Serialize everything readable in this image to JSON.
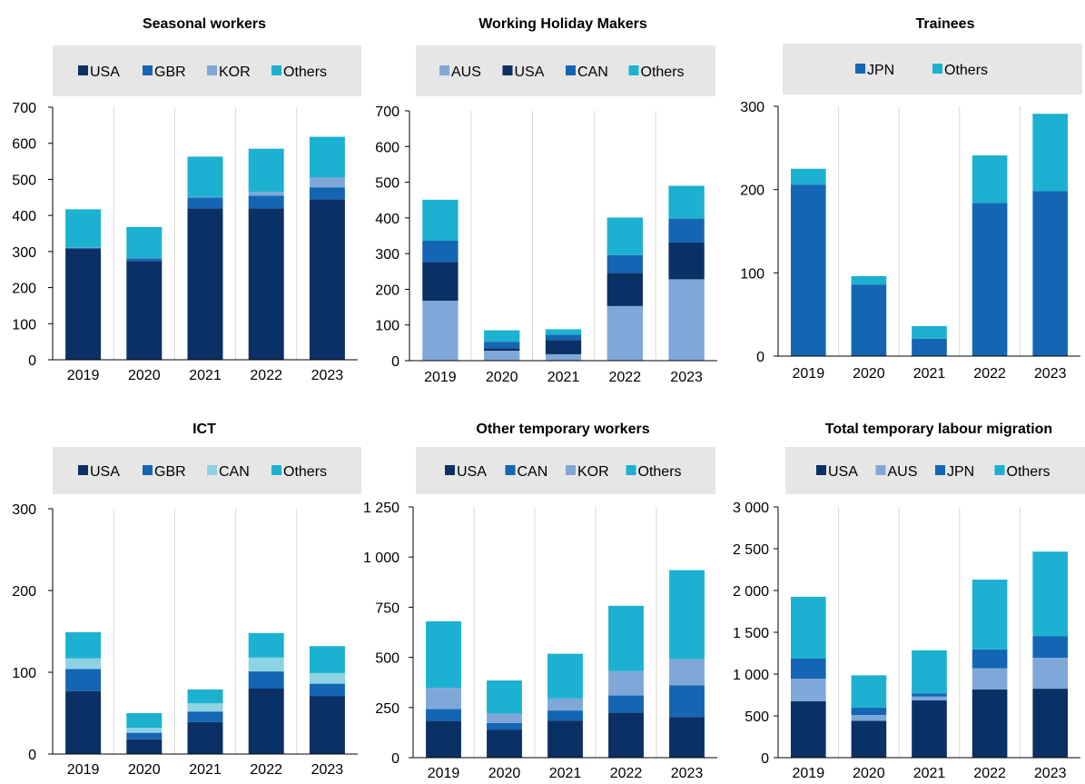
{
  "chart_data": [
    {
      "type": "bar",
      "stacked": true,
      "title": "Seasonal workers",
      "categories": [
        "2019",
        "2020",
        "2021",
        "2022",
        "2023"
      ],
      "series": [
        {
          "name": "USA",
          "color": "#0B3066",
          "values": [
            308,
            273,
            420,
            420,
            445
          ]
        },
        {
          "name": "GBR",
          "color": "#1466B4",
          "values": [
            2,
            8,
            30,
            35,
            33
          ]
        },
        {
          "name": "KOR",
          "color": "#7FA8D8",
          "values": [
            1,
            1,
            1,
            10,
            27
          ]
        },
        {
          "name": "Others",
          "color": "#1CB1D0",
          "values": [
            106,
            86,
            112,
            120,
            113
          ]
        }
      ],
      "yticks": [
        0,
        100,
        200,
        300,
        400,
        500,
        600,
        700
      ],
      "ytick_labels": [
        "0",
        "100",
        "200",
        "300",
        "400",
        "500",
        "600",
        "700"
      ],
      "ylim": [
        0,
        700
      ],
      "grid": "vertical",
      "legend": "top"
    },
    {
      "type": "bar",
      "stacked": true,
      "title": "Working Holiday Makers",
      "categories": [
        "2019",
        "2020",
        "2021",
        "2022",
        "2023"
      ],
      "series": [
        {
          "name": "AUS",
          "color": "#7FA8D8",
          "values": [
            168,
            28,
            18,
            153,
            228
          ]
        },
        {
          "name": "USA",
          "color": "#0B3066",
          "values": [
            108,
            7,
            40,
            93,
            103
          ]
        },
        {
          "name": "CAN",
          "color": "#1466B4",
          "values": [
            60,
            18,
            15,
            50,
            67
          ]
        },
        {
          "name": "Others",
          "color": "#1CB1D0",
          "values": [
            115,
            32,
            15,
            105,
            92
          ]
        }
      ],
      "yticks": [
        0,
        100,
        200,
        300,
        400,
        500,
        600,
        700
      ],
      "ytick_labels": [
        "0",
        "100",
        "200",
        "300",
        "400",
        "500",
        "600",
        "700"
      ],
      "ylim": [
        0,
        700
      ],
      "grid": "vertical",
      "legend": "top"
    },
    {
      "type": "bar",
      "stacked": true,
      "title": "Trainees",
      "categories": [
        "2019",
        "2020",
        "2021",
        "2022",
        "2023"
      ],
      "series": [
        {
          "name": "JPN",
          "color": "#1466B4",
          "values": [
            206,
            86,
            21,
            184,
            198
          ]
        },
        {
          "name": "Others",
          "color": "#1CB1D0",
          "values": [
            19,
            10,
            15,
            57,
            93
          ]
        }
      ],
      "yticks": [
        0,
        100,
        200,
        300
      ],
      "ytick_labels": [
        "0",
        "100",
        "200",
        "300"
      ],
      "ylim": [
        0,
        300
      ],
      "grid": "vertical",
      "legend": "top"
    },
    {
      "type": "bar",
      "stacked": true,
      "title": "ICT",
      "categories": [
        "2019",
        "2020",
        "2021",
        "2022",
        "2023"
      ],
      "series": [
        {
          "name": "USA",
          "color": "#0B3066",
          "values": [
            77,
            18,
            39,
            80,
            71
          ]
        },
        {
          "name": "GBR",
          "color": "#1466B4",
          "values": [
            27,
            8,
            13,
            21,
            15
          ]
        },
        {
          "name": "CAN",
          "color": "#8DD3E4",
          "values": [
            13,
            6,
            10,
            17,
            13
          ]
        },
        {
          "name": "Others",
          "color": "#1CB1D0",
          "values": [
            32,
            18,
            17,
            30,
            33
          ]
        }
      ],
      "yticks": [
        0,
        100,
        200,
        300
      ],
      "ytick_labels": [
        "0",
        "100",
        "200",
        "300"
      ],
      "ylim": [
        0,
        300
      ],
      "grid": "vertical",
      "legend": "top"
    },
    {
      "type": "bar",
      "stacked": true,
      "title": "Other temporary workers",
      "categories": [
        "2019",
        "2020",
        "2021",
        "2022",
        "2023"
      ],
      "series": [
        {
          "name": "USA",
          "color": "#0B3066",
          "values": [
            183,
            140,
            185,
            225,
            203
          ]
        },
        {
          "name": "CAN",
          "color": "#1466B4",
          "values": [
            60,
            33,
            50,
            85,
            157
          ]
        },
        {
          "name": "KOR",
          "color": "#7FA8D8",
          "values": [
            105,
            47,
            60,
            122,
            132
          ]
        },
        {
          "name": "Others",
          "color": "#1CB1D0",
          "values": [
            332,
            165,
            223,
            325,
            443
          ]
        }
      ],
      "yticks": [
        0,
        250,
        500,
        750,
        1000,
        1250
      ],
      "ytick_labels": [
        "0",
        "250",
        "500",
        "750",
        "1 000",
        "1 250"
      ],
      "ylim": [
        0,
        1250
      ],
      "grid": "vertical",
      "legend": "top"
    },
    {
      "type": "bar",
      "stacked": true,
      "title": "Total temporary labour migration",
      "categories": [
        "2019",
        "2020",
        "2021",
        "2022",
        "2023"
      ],
      "series": [
        {
          "name": "USA",
          "color": "#0B3066",
          "values": [
            675,
            440,
            685,
            815,
            825
          ]
        },
        {
          "name": "AUS",
          "color": "#7FA8D8",
          "values": [
            270,
            70,
            45,
            255,
            370
          ]
        },
        {
          "name": "JPN",
          "color": "#1466B4",
          "values": [
            240,
            90,
            40,
            225,
            260
          ]
        },
        {
          "name": "Others",
          "color": "#1CB1D0",
          "values": [
            740,
            385,
            515,
            835,
            1010
          ]
        }
      ],
      "yticks": [
        0,
        500,
        1000,
        1500,
        2000,
        2500,
        3000
      ],
      "ytick_labels": [
        "0",
        "500",
        "1 000",
        "1 500",
        "2 000",
        "2 500",
        "3 000"
      ],
      "ylim": [
        0,
        3000
      ],
      "grid": "vertical",
      "legend": "top"
    }
  ]
}
